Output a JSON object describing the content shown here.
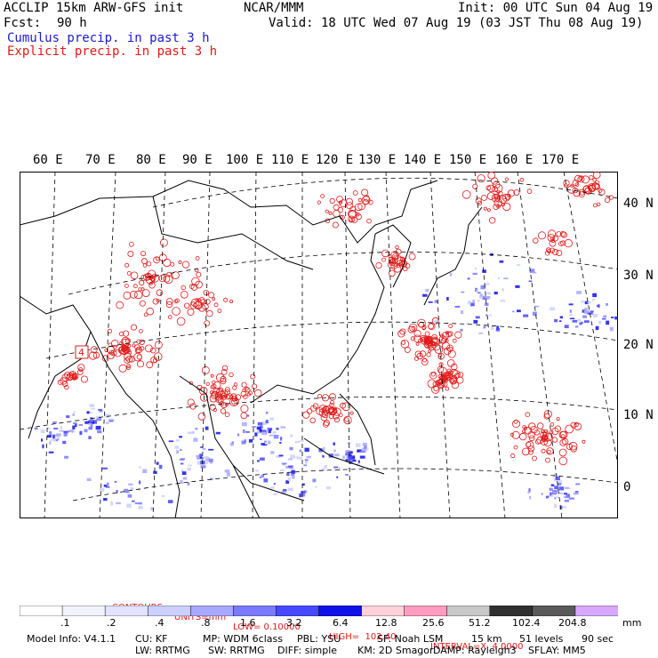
{
  "header": {
    "model": "ACCLIP 15km ARW-GFS init",
    "fcst_label": "Fcst:",
    "fcst_value": "90 h",
    "org": "NCAR/MMM",
    "init": "Init: 00 UTC Sun 04 Aug 19",
    "valid": "Valid: 18 UTC Wed 07 Aug 19 (03 JST Thu 08 Aug 19)",
    "legend_cumulus": "Cumulus precip. in past 3 h",
    "legend_explicit": "Explicit precip. in past 3 h"
  },
  "colors": {
    "cumulus": "#1a1ad0",
    "explicit": "#e01a1a"
  },
  "map": {
    "longitude_labels": [
      "60 E",
      "70 E",
      "80 E",
      "90 E",
      "100 E",
      "110 E",
      "120 E",
      "130 E",
      "140 E",
      "150 E",
      "160 E",
      "170 E"
    ],
    "latitude_labels": [
      "40 N",
      "30 N",
      "20 N",
      "10 N",
      "0"
    ],
    "box_label": "4"
  },
  "contours": {
    "label": "CONTOURS:",
    "units": "UNITS=mm",
    "low": "LOW= 0.10000",
    "high": "HIGH=  102.40",
    "interval": "INTERVAL=X  4.0000"
  },
  "colorbar": {
    "colors": [
      "#ffffff",
      "#ffffff",
      "#f2f2ff",
      "#e3e3ff",
      "#cdd0ff",
      "#a8a8ff",
      "#7a7aff",
      "#4848ff",
      "#1010e8",
      "#ffd0d8",
      "#ff9cc0",
      "#c8c8c8",
      "#303030",
      "#5a5a5a",
      "#d8a8ff"
    ],
    "ticks": [
      ".1",
      ".2",
      ".4",
      ".8",
      "1.6",
      "3.2",
      "6.4",
      "12.8",
      "25.6",
      "51.2",
      "102.4",
      "204.8"
    ],
    "unit": "mm"
  },
  "footer": {
    "line1": [
      "Model Info: V4.1.1",
      "CU: KF",
      "MP: WDM 6class",
      "PBL: YSU",
      "SF: Noah LSM",
      "15 km",
      "51 levels",
      "90 sec"
    ],
    "line2": [
      "LW: RRTMG",
      "SW: RRTMG",
      "DIFF: simple",
      "KM: 2D Smagor",
      "DAMP: Rayleigh3",
      "SFLAY: MM5"
    ]
  }
}
